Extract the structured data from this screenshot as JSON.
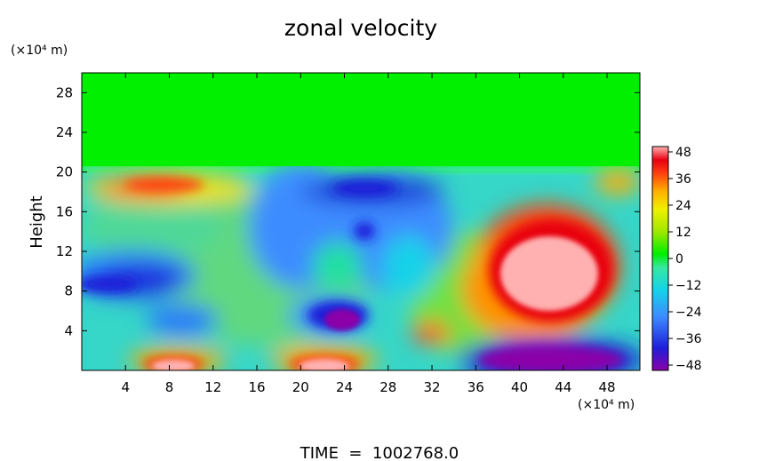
{
  "chart_data": {
    "type": "heatmap",
    "title": "zonal velocity",
    "xlabel": "",
    "ylabel": "Height",
    "x_unit_label": "(×10⁴ m)",
    "y_unit_label": "(×10⁴ m)",
    "footer": "TIME  =  1002768.0",
    "xlim": [
      0,
      51
    ],
    "ylim": [
      0,
      30
    ],
    "x_ticks": [
      4,
      8,
      12,
      16,
      20,
      24,
      28,
      32,
      36,
      40,
      44,
      48
    ],
    "y_ticks": [
      4,
      8,
      12,
      16,
      20,
      24,
      28
    ],
    "colorbar": {
      "ticks": [
        48,
        36,
        24,
        12,
        0,
        -12,
        -24,
        -36,
        -48
      ],
      "range": [
        -48,
        48
      ]
    },
    "regions": [
      {
        "label": "upper layer near zero",
        "x": [
          0,
          51
        ],
        "y": [
          20,
          30
        ],
        "value": 0
      },
      {
        "label": "large positive jet",
        "x": [
          36,
          51
        ],
        "y": [
          5,
          16
        ],
        "value_min": 24,
        "value_max": 52
      },
      {
        "label": "strong negative core near surface",
        "x": [
          35,
          51
        ],
        "y": [
          0,
          2.5
        ],
        "value_min": -52,
        "value_max": -24
      },
      {
        "label": "negative core",
        "x": [
          22,
          27
        ],
        "y": [
          3.5,
          6
        ],
        "value_min": -52,
        "value_max": -36
      },
      {
        "label": "positive surface core",
        "x": [
          6,
          11
        ],
        "y": [
          0,
          1.5
        ],
        "value_min": 36,
        "value_max": 52
      },
      {
        "label": "positive surface core",
        "x": [
          19,
          25
        ],
        "y": [
          0,
          2
        ],
        "value_min": 36,
        "value_max": 52
      },
      {
        "label": "negative band",
        "x": [
          0,
          20
        ],
        "y": [
          6,
          11
        ],
        "value_min": -40,
        "value_max": -20
      },
      {
        "label": "negative region",
        "x": [
          20,
          35
        ],
        "y": [
          12,
          20
        ],
        "value_min": -40,
        "value_max": -20
      },
      {
        "label": "positive band",
        "x": [
          2,
          18
        ],
        "y": [
          17,
          20
        ],
        "value_min": 20,
        "value_max": 40
      }
    ]
  }
}
